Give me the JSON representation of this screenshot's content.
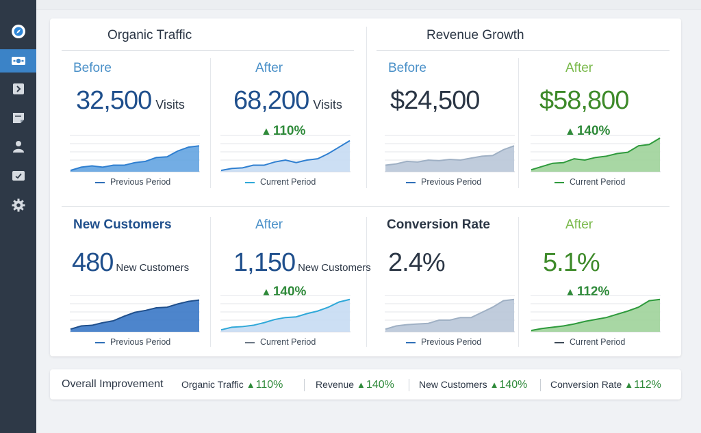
{
  "sidebar": {
    "items": [
      {
        "icon": "compass-icon",
        "active": false
      },
      {
        "icon": "money-icon",
        "active": true
      },
      {
        "icon": "chevron-right-icon",
        "active": false
      },
      {
        "icon": "note-icon",
        "active": false
      },
      {
        "icon": "user-icon",
        "active": false
      },
      {
        "icon": "mail-icon",
        "active": false
      },
      {
        "icon": "gear-icon",
        "active": false
      }
    ]
  },
  "sections": {
    "organic_traffic": "Organic Traffic",
    "revenue_growth": "Revenue Growth"
  },
  "panels": [
    {
      "label": "Before",
      "value": "32,500",
      "unit": "Visits",
      "change": "",
      "legend": "Previous Period",
      "series": [
        2,
        7,
        9,
        7,
        10,
        10,
        14,
        16,
        22,
        23,
        32,
        38,
        40
      ]
    },
    {
      "label": "After",
      "value": "68,200",
      "unit": "Visits",
      "change": "110%",
      "legend": "Current Period",
      "series": [
        2,
        5,
        6,
        10,
        10,
        15,
        18,
        14,
        18,
        20,
        28,
        38,
        48
      ]
    },
    {
      "label": "Before",
      "value": "$24,500",
      "unit": "",
      "change": "",
      "legend": "Previous Period",
      "series": [
        10,
        12,
        16,
        15,
        18,
        17,
        19,
        18,
        21,
        24,
        25,
        34,
        40
      ]
    },
    {
      "label": "After",
      "value": "$58,800",
      "unit": "",
      "change": "140%",
      "legend": "Current Period",
      "series": [
        3,
        8,
        13,
        14,
        20,
        18,
        22,
        24,
        28,
        30,
        40,
        42,
        52
      ]
    },
    {
      "label": "New Customers",
      "value": "480",
      "unit": "New Customers",
      "change": "",
      "legend": "Previous Period",
      "series": [
        4,
        9,
        10,
        14,
        17,
        24,
        30,
        33,
        37,
        38,
        43,
        47,
        49
      ]
    },
    {
      "label": "After",
      "value": "1,150",
      "unit": "New Customers",
      "change": "140%",
      "legend": "Current Period",
      "series": [
        3,
        7,
        8,
        10,
        14,
        19,
        22,
        23,
        28,
        32,
        38,
        46,
        50
      ]
    },
    {
      "label": "Conversion Rate",
      "value": "2.4%",
      "unit": "",
      "change": "",
      "legend": "Previous Period",
      "series": [
        4,
        9,
        11,
        12,
        13,
        18,
        18,
        22,
        22,
        30,
        38,
        48,
        50
      ]
    },
    {
      "label": "After",
      "value": "5.1%",
      "unit": "",
      "change": "112%",
      "legend": "Current Period",
      "series": [
        2,
        5,
        7,
        9,
        12,
        16,
        19,
        22,
        27,
        32,
        38,
        48,
        50
      ]
    }
  ],
  "footer": {
    "title": "Overall Improvement",
    "items": [
      {
        "label": "Organic Traffic",
        "value": "110%"
      },
      {
        "label": "Revenue",
        "value": "140%"
      },
      {
        "label": "New Customers",
        "value": "140%"
      },
      {
        "label": "Conversion Rate",
        "value": "112%"
      }
    ]
  },
  "colors": {
    "blue_line": "#2f7fd0",
    "blue_fill": "#5a9fdf",
    "light_blue_fill": "#c6dcf3",
    "gray_blue_fill": "#b9c7d8",
    "green_line": "#2e9a3c",
    "green_fill": "#9fd39a",
    "navy_line": "#1f4f8c",
    "navy_fill": "#3a78c6"
  }
}
